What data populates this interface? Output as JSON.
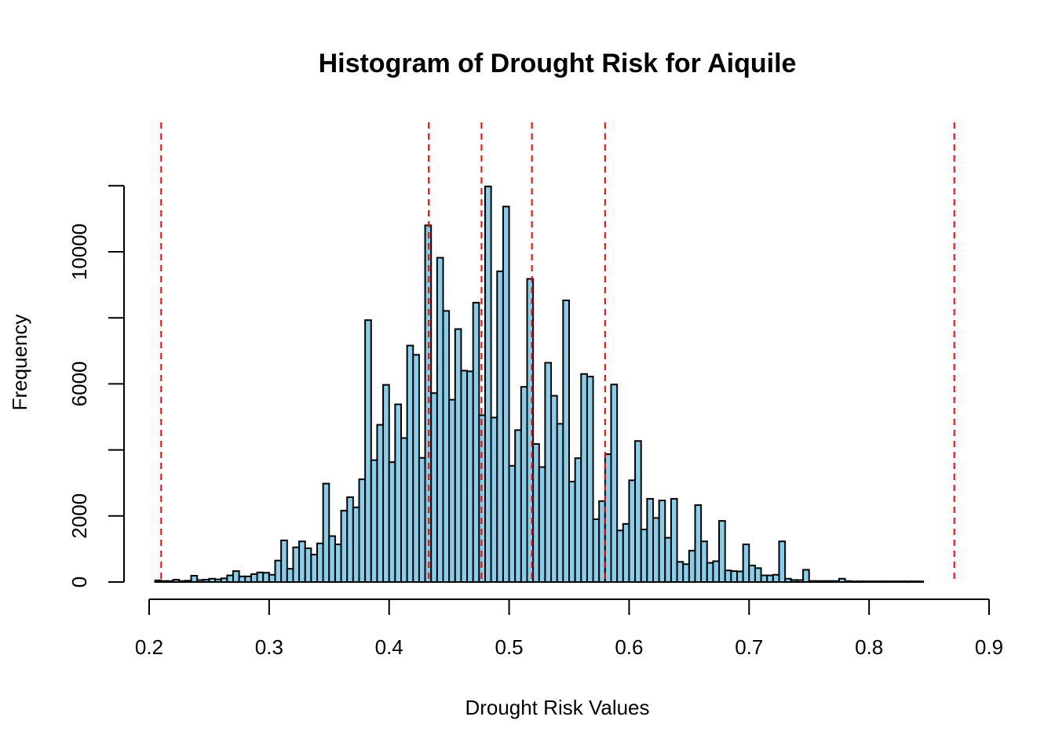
{
  "chart_data": {
    "type": "bar",
    "title": "Histogram of Drought Risk for Aiquile",
    "xlabel": "Drought Risk Values",
    "ylabel": "Frequency",
    "xlim": [
      0.2,
      0.9
    ],
    "ylim": [
      0,
      12000
    ],
    "x_ticks": [
      0.2,
      0.3,
      0.4,
      0.5,
      0.6,
      0.7,
      0.8,
      0.9
    ],
    "x_tick_labels": [
      "0.2",
      "0.3",
      "0.4",
      "0.5",
      "0.6",
      "0.7",
      "0.8",
      "0.9"
    ],
    "y_ticks": [
      0,
      2000,
      6000,
      10000
    ],
    "y_tick_labels": [
      "0",
      "2000",
      "6000",
      "10000"
    ],
    "bin_start": 0.205,
    "bin_width": 0.005,
    "values": [
      50,
      30,
      30,
      70,
      30,
      40,
      190,
      60,
      70,
      100,
      80,
      110,
      200,
      330,
      170,
      170,
      240,
      290,
      280,
      220,
      650,
      1260,
      400,
      1050,
      1230,
      1020,
      830,
      1170,
      2980,
      1390,
      1140,
      2160,
      2570,
      2260,
      3110,
      7930,
      3690,
      4760,
      5970,
      3630,
      5380,
      4360,
      7160,
      6880,
      3760,
      10800,
      5720,
      9820,
      8210,
      5520,
      7660,
      6400,
      6380,
      8460,
      5050,
      11980,
      4980,
      9410,
      11370,
      3520,
      4600,
      5910,
      9180,
      4180,
      3480,
      6640,
      5640,
      4790,
      8530,
      3040,
      3750,
      6300,
      6220,
      1900,
      2450,
      3870,
      5980,
      1560,
      1760,
      3080,
      4270,
      1590,
      2520,
      1940,
      2470,
      1340,
      2520,
      610,
      540,
      950,
      2330,
      1230,
      580,
      630,
      1850,
      350,
      330,
      320,
      1140,
      500,
      420,
      200,
      200,
      220,
      1230,
      100,
      60,
      60,
      370,
      30,
      30,
      30,
      30,
      30,
      100,
      30,
      20,
      20,
      20,
      20,
      20,
      20,
      20,
      20,
      20,
      20,
      20,
      20
    ],
    "reference_lines": [
      0.21,
      0.433,
      0.477,
      0.519,
      0.58,
      0.871
    ],
    "reference_line_color": "#ff0000",
    "bar_color": "#87ceeb"
  }
}
